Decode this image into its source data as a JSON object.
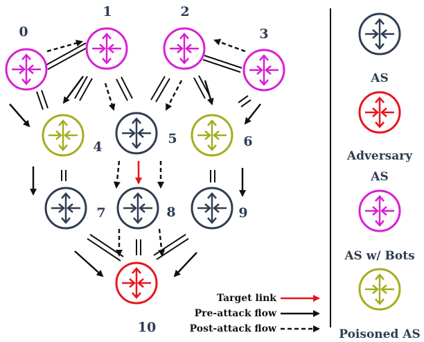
{
  "node_labels": [
    "0",
    "1",
    "2",
    "3",
    "4",
    "5",
    "6",
    "7",
    "8",
    "9",
    "10"
  ],
  "legend": {
    "as_label": "AS",
    "adversary_label": "Adversary",
    "adversary_label_2": "AS",
    "bots_label": "AS w/ Bots",
    "poisoned_label": "Poisoned AS"
  },
  "flow_legend": {
    "target_link": "Target link",
    "pre_attack": "Pre-attack flow",
    "post_attack": "Post-attack flow"
  },
  "colors": {
    "as": "#2f3d52",
    "adversary": "#e8141c",
    "bots": "#d81fd4",
    "poisoned": "#a4ad1c",
    "flow_arrow": "#111111"
  },
  "node_icons": {
    "0": "router-icon",
    "1": "router-icon",
    "2": "router-icon",
    "3": "router-icon",
    "4": "router-icon",
    "5": "router-icon",
    "6": "router-icon",
    "7": "router-icon",
    "8": "router-icon",
    "9": "router-icon",
    "10": "router-icon"
  }
}
